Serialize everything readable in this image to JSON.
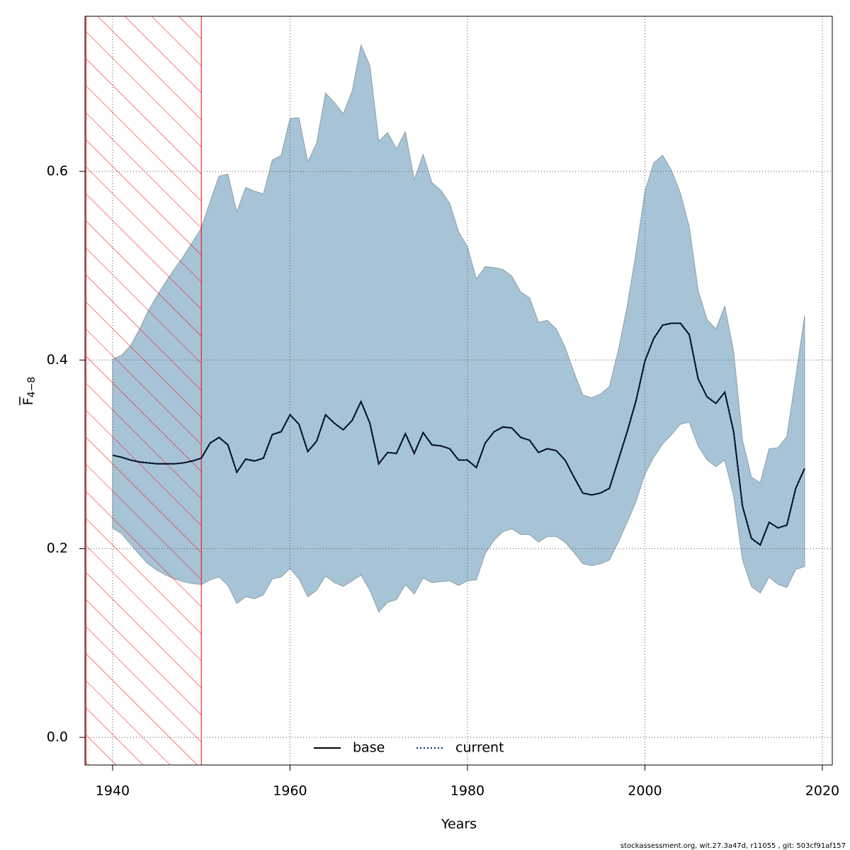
{
  "chart_data": {
    "type": "band-line",
    "xlabel": "Years",
    "ylabel": {
      "text": "F",
      "subscript": "4−8"
    },
    "footer": "stockassessment.org, wit.27.3a47d, r11055 , git: 503cf91af157",
    "x": [
      1940,
      1941,
      1942,
      1943,
      1944,
      1945,
      1946,
      1947,
      1948,
      1949,
      1950,
      1951,
      1952,
      1953,
      1954,
      1955,
      1956,
      1957,
      1958,
      1959,
      1960,
      1961,
      1962,
      1963,
      1964,
      1965,
      1966,
      1967,
      1968,
      1969,
      1970,
      1971,
      1972,
      1973,
      1974,
      1975,
      1976,
      1977,
      1978,
      1979,
      1980,
      1981,
      1982,
      1983,
      1984,
      1985,
      1986,
      1987,
      1988,
      1989,
      1990,
      1991,
      1992,
      1993,
      1994,
      1995,
      1996,
      1997,
      1998,
      1999,
      2000,
      2001,
      2002,
      2003,
      2004,
      2005,
      2006,
      2007,
      2008,
      2009,
      2010,
      2011,
      2012,
      2013,
      2014,
      2015,
      2016,
      2017,
      2018
    ],
    "band": {
      "color": "#a6c4d6",
      "edge": "#8e9ea8",
      "upper": [
        0.401,
        0.405,
        0.415,
        0.432,
        0.452,
        0.468,
        0.483,
        0.497,
        0.51,
        0.525,
        0.54,
        0.568,
        0.595,
        0.597,
        0.557,
        0.583,
        0.579,
        0.576,
        0.612,
        0.617,
        0.656,
        0.657,
        0.61,
        0.63,
        0.683,
        0.673,
        0.661,
        0.685,
        0.734,
        0.712,
        0.632,
        0.641,
        0.624,
        0.642,
        0.591,
        0.618,
        0.588,
        0.58,
        0.566,
        0.536,
        0.52,
        0.486,
        0.499,
        0.498,
        0.496,
        0.489,
        0.472,
        0.466,
        0.44,
        0.442,
        0.433,
        0.414,
        0.387,
        0.363,
        0.36,
        0.364,
        0.372,
        0.41,
        0.457,
        0.514,
        0.579,
        0.609,
        0.617,
        0.601,
        0.577,
        0.541,
        0.474,
        0.443,
        0.433,
        0.457,
        0.409,
        0.315,
        0.276,
        0.27,
        0.306,
        0.307,
        0.319,
        0.382,
        0.447
      ],
      "lower": [
        0.222,
        0.216,
        0.205,
        0.194,
        0.184,
        0.177,
        0.172,
        0.168,
        0.165,
        0.163,
        0.162,
        0.167,
        0.17,
        0.161,
        0.142,
        0.149,
        0.147,
        0.151,
        0.168,
        0.17,
        0.179,
        0.168,
        0.149,
        0.156,
        0.171,
        0.164,
        0.16,
        0.166,
        0.172,
        0.156,
        0.133,
        0.143,
        0.146,
        0.162,
        0.152,
        0.169,
        0.164,
        0.165,
        0.166,
        0.161,
        0.166,
        0.167,
        0.195,
        0.209,
        0.218,
        0.221,
        0.215,
        0.215,
        0.207,
        0.213,
        0.213,
        0.207,
        0.196,
        0.184,
        0.182,
        0.184,
        0.188,
        0.207,
        0.228,
        0.25,
        0.279,
        0.297,
        0.311,
        0.321,
        0.332,
        0.334,
        0.309,
        0.294,
        0.287,
        0.294,
        0.256,
        0.188,
        0.16,
        0.153,
        0.17,
        0.162,
        0.159,
        0.178,
        0.181
      ]
    },
    "series": [
      {
        "name": "base",
        "color": "#000000",
        "dash": "solid",
        "values": [
          0.299,
          0.297,
          0.294,
          0.292,
          0.291,
          0.29,
          0.29,
          0.29,
          0.291,
          0.293,
          0.296,
          0.312,
          0.318,
          0.31,
          0.281,
          0.295,
          0.293,
          0.296,
          0.321,
          0.324,
          0.342,
          0.332,
          0.303,
          0.314,
          0.342,
          0.333,
          0.326,
          0.336,
          0.356,
          0.333,
          0.29,
          0.302,
          0.301,
          0.322,
          0.301,
          0.323,
          0.31,
          0.309,
          0.306,
          0.294,
          0.294,
          0.286,
          0.312,
          0.324,
          0.329,
          0.328,
          0.318,
          0.315,
          0.302,
          0.306,
          0.304,
          0.294,
          0.276,
          0.259,
          0.257,
          0.259,
          0.264,
          0.294,
          0.324,
          0.357,
          0.399,
          0.423,
          0.437,
          0.439,
          0.439,
          0.427,
          0.38,
          0.361,
          0.354,
          0.366,
          0.324,
          0.245,
          0.211,
          0.204,
          0.228,
          0.222,
          0.225,
          0.264,
          0.285
        ]
      },
      {
        "name": "current",
        "color": "#0b2a6b",
        "dash": "dotted",
        "values": [
          0.299,
          0.297,
          0.294,
          0.292,
          0.291,
          0.29,
          0.29,
          0.29,
          0.291,
          0.293,
          0.296,
          0.312,
          0.318,
          0.31,
          0.281,
          0.295,
          0.293,
          0.296,
          0.321,
          0.324,
          0.342,
          0.332,
          0.303,
          0.314,
          0.342,
          0.333,
          0.326,
          0.336,
          0.356,
          0.333,
          0.29,
          0.302,
          0.301,
          0.322,
          0.301,
          0.323,
          0.31,
          0.309,
          0.306,
          0.294,
          0.294,
          0.286,
          0.312,
          0.324,
          0.329,
          0.328,
          0.318,
          0.315,
          0.302,
          0.306,
          0.304,
          0.294,
          0.276,
          0.259,
          0.257,
          0.259,
          0.264,
          0.294,
          0.324,
          0.357,
          0.399,
          0.423,
          0.437,
          0.439,
          0.439,
          0.427,
          0.38,
          0.361,
          0.354,
          0.366,
          0.324,
          0.245,
          0.211,
          0.204,
          0.228,
          0.222,
          0.225,
          0.264,
          0.285
        ]
      }
    ],
    "hatched_range": {
      "x": [
        1937,
        1950
      ],
      "color": "#ff0000"
    },
    "xlim": [
      1936.89,
      2021.12
    ],
    "ylim": [
      -0.0293,
      0.7644
    ],
    "xticks": [
      1940,
      1960,
      1980,
      2000,
      2020
    ],
    "yticks": [
      {
        "value": 0,
        "label": "0.0"
      },
      0.2,
      0.4,
      0.6
    ],
    "grid": true,
    "legend": "bottom"
  }
}
